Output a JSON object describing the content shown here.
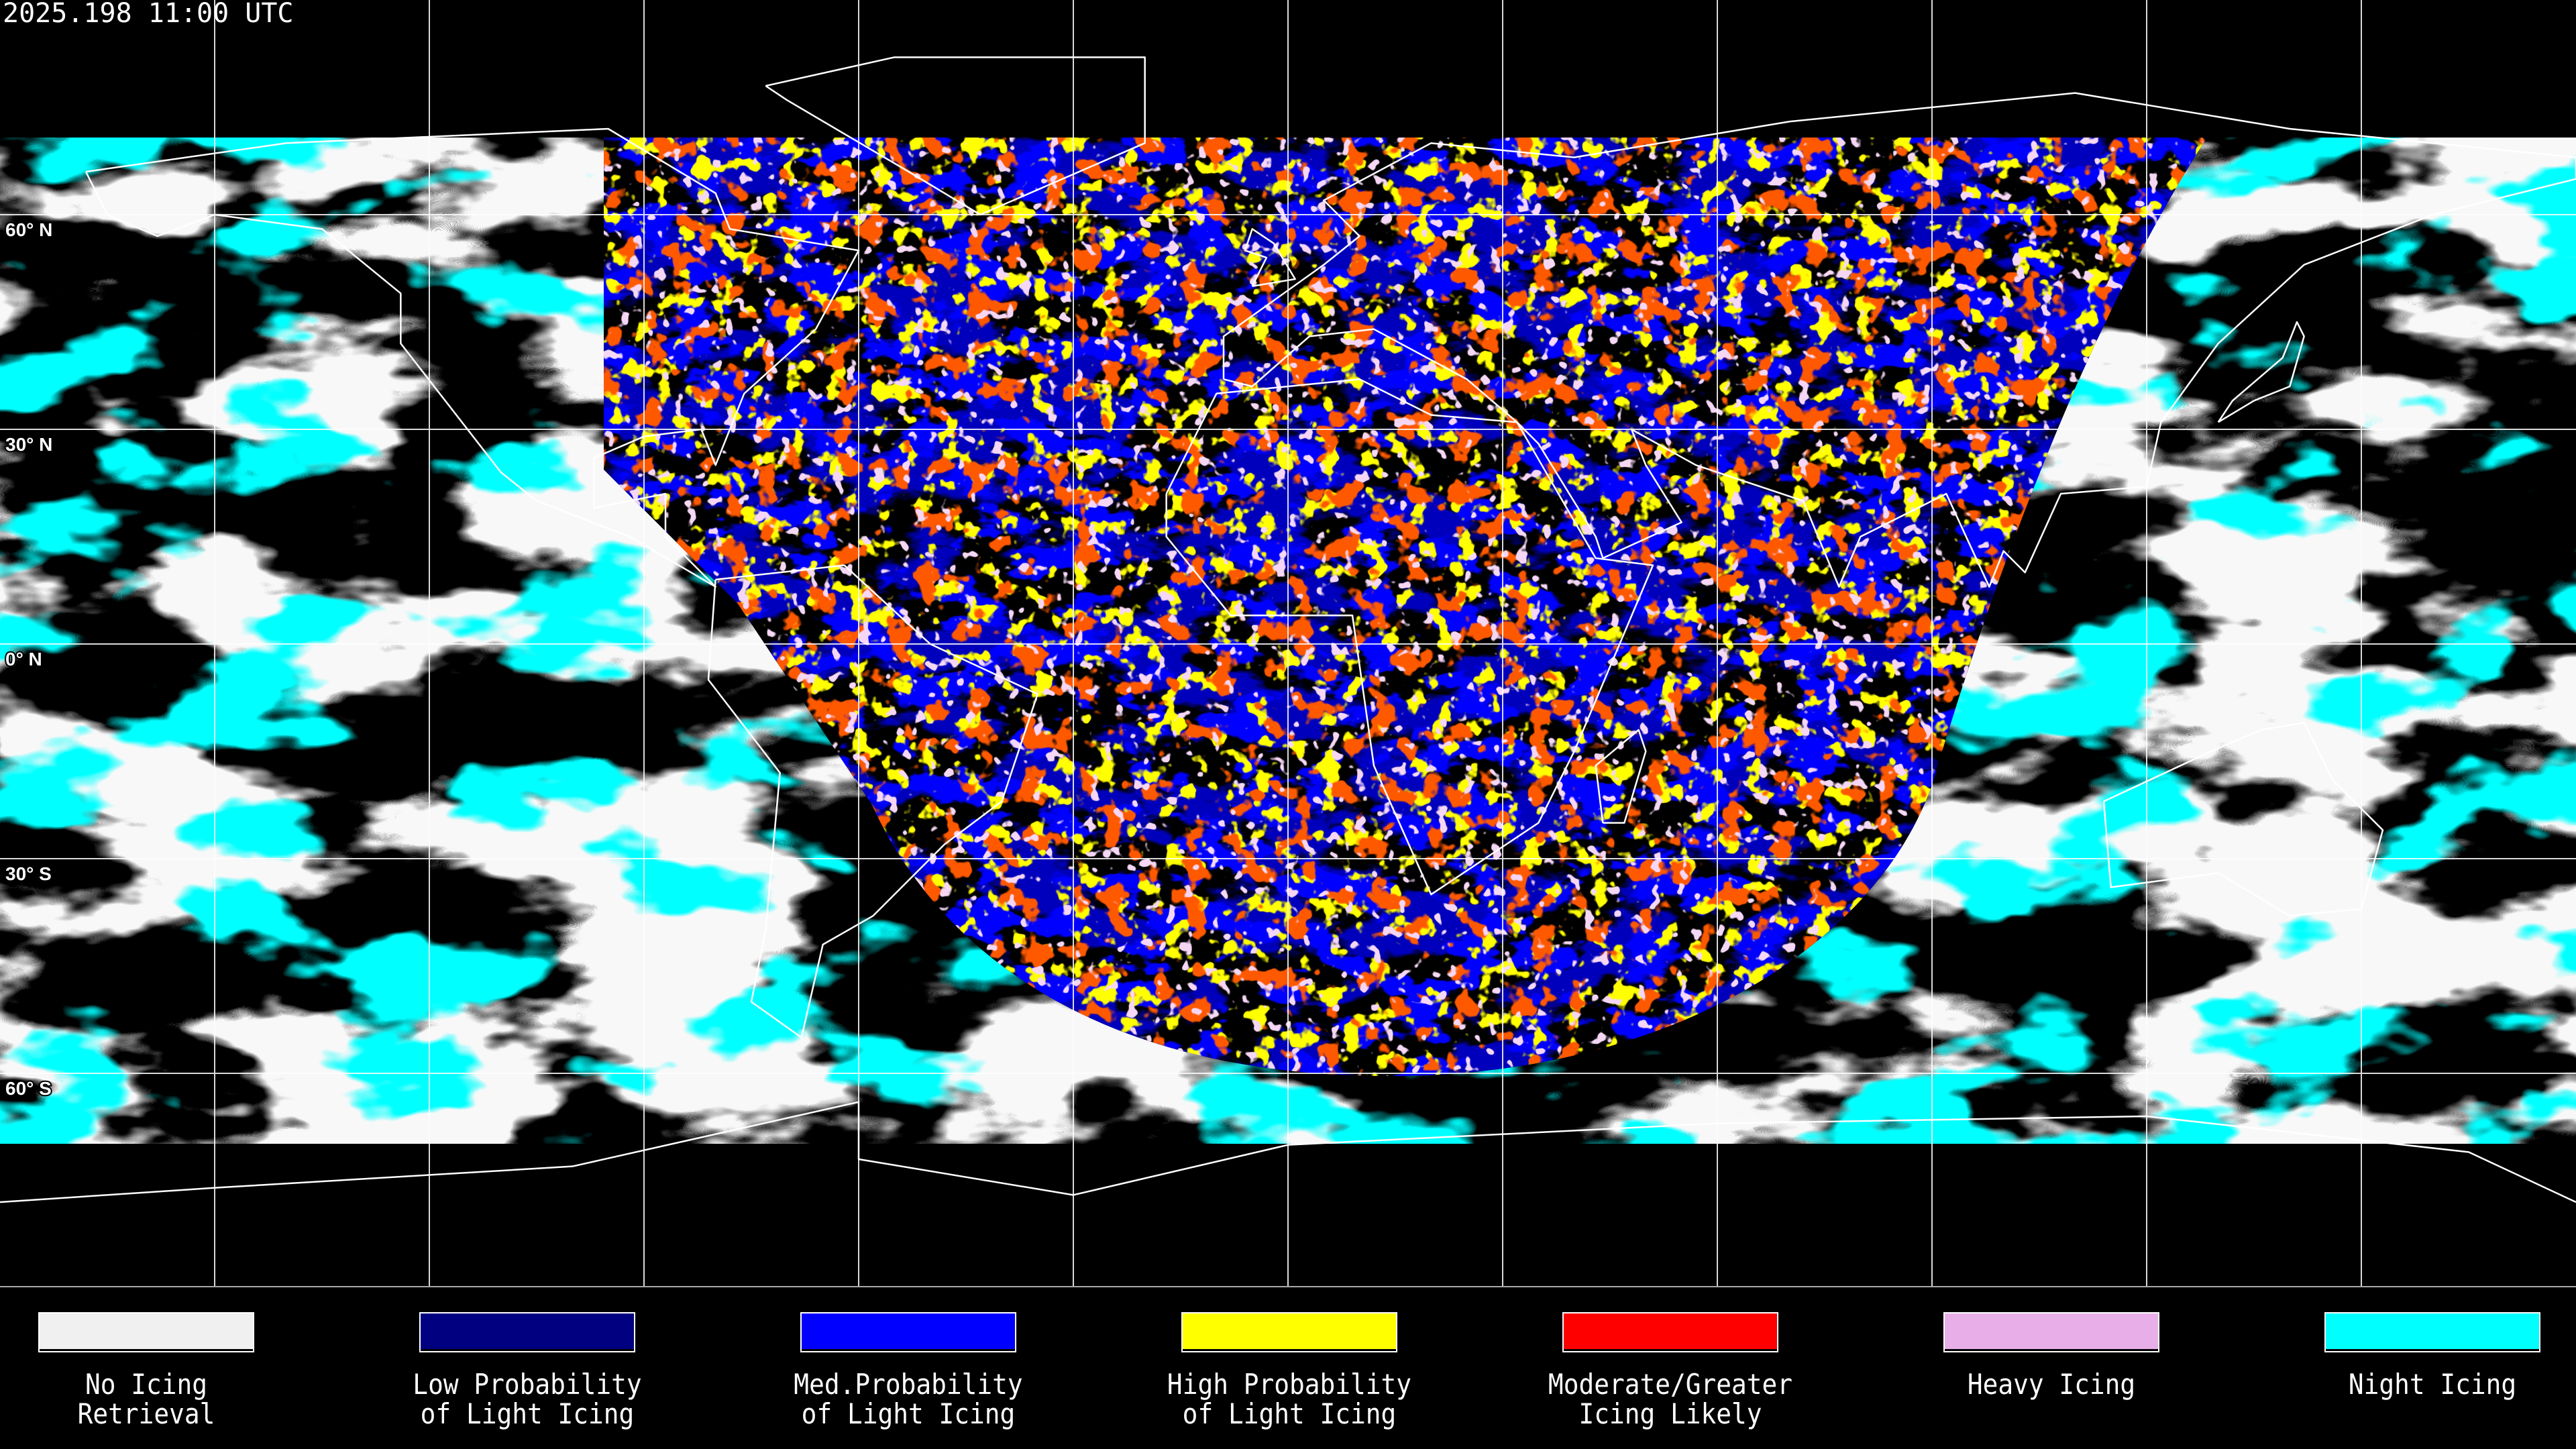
{
  "title": "2025.198 11:00 UTC",
  "map": {
    "projection": "equirectangular",
    "gridline_spacing_deg": 30,
    "lat_labels": [
      "60° N",
      "30° N",
      "0° N",
      "30° S",
      "60° S"
    ]
  },
  "legend": [
    {
      "line1": "No Icing",
      "line2": "Retrieval",
      "color": "#f0f0f0"
    },
    {
      "line1": "Low Probability",
      "line2": "of Light Icing",
      "color": "#000080"
    },
    {
      "line1": "Med.Probability",
      "line2": "of Light Icing",
      "color": "#0000ff"
    },
    {
      "line1": "High Probability",
      "line2": "of Light Icing",
      "color": "#ffff00"
    },
    {
      "line1": "Moderate/Greater",
      "line2": "Icing Likely",
      "color": "#ff0000"
    },
    {
      "line1": "Heavy Icing",
      "line2": "",
      "color": "#e8aee8"
    },
    {
      "line1": "Night Icing",
      "line2": "",
      "color": "#00ffff"
    }
  ]
}
